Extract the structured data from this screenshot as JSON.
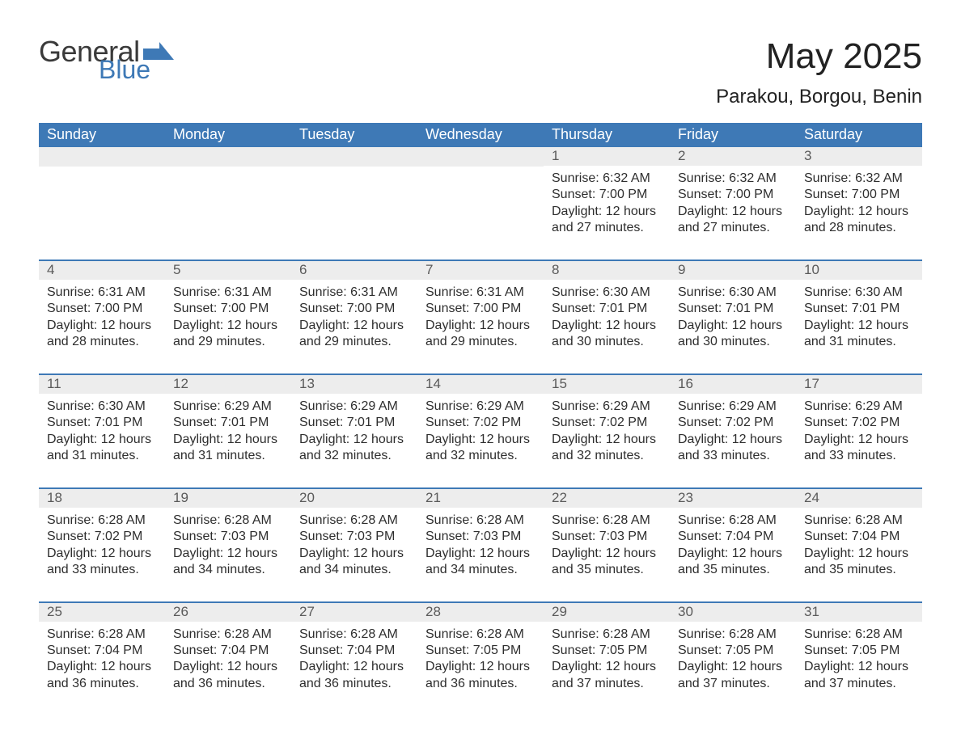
{
  "colors": {
    "accent": "#3e79b6",
    "header_text": "#ffffff",
    "daynum_bg": "#ededed",
    "daynum_text": "#5a5a5a",
    "body_text": "#333333",
    "page_bg": "#ffffff"
  },
  "typography": {
    "title_fontsize_pt": 33,
    "location_fontsize_pt": 18,
    "weekday_fontsize_pt": 13,
    "daynum_fontsize_pt": 13,
    "body_fontsize_pt": 12,
    "font_family": "Segoe UI"
  },
  "logo": {
    "line1": "General",
    "line2": "Blue",
    "line1_color": "#3a3a3a",
    "line2_color": "#3e79b6",
    "flag_color": "#3e79b6"
  },
  "title": {
    "month": "May 2025",
    "location": "Parakou, Borgou, Benin"
  },
  "calendar": {
    "type": "table",
    "columns": [
      "Sunday",
      "Monday",
      "Tuesday",
      "Wednesday",
      "Thursday",
      "Friday",
      "Saturday"
    ],
    "start_weekday_index": 4,
    "labels": {
      "sunrise": "Sunrise",
      "sunset": "Sunset",
      "daylight": "Daylight"
    },
    "days": [
      {
        "n": 1,
        "sunrise": "6:32 AM",
        "sunset": "7:00 PM",
        "daylight": "12 hours and 27 minutes."
      },
      {
        "n": 2,
        "sunrise": "6:32 AM",
        "sunset": "7:00 PM",
        "daylight": "12 hours and 27 minutes."
      },
      {
        "n": 3,
        "sunrise": "6:32 AM",
        "sunset": "7:00 PM",
        "daylight": "12 hours and 28 minutes."
      },
      {
        "n": 4,
        "sunrise": "6:31 AM",
        "sunset": "7:00 PM",
        "daylight": "12 hours and 28 minutes."
      },
      {
        "n": 5,
        "sunrise": "6:31 AM",
        "sunset": "7:00 PM",
        "daylight": "12 hours and 29 minutes."
      },
      {
        "n": 6,
        "sunrise": "6:31 AM",
        "sunset": "7:00 PM",
        "daylight": "12 hours and 29 minutes."
      },
      {
        "n": 7,
        "sunrise": "6:31 AM",
        "sunset": "7:00 PM",
        "daylight": "12 hours and 29 minutes."
      },
      {
        "n": 8,
        "sunrise": "6:30 AM",
        "sunset": "7:01 PM",
        "daylight": "12 hours and 30 minutes."
      },
      {
        "n": 9,
        "sunrise": "6:30 AM",
        "sunset": "7:01 PM",
        "daylight": "12 hours and 30 minutes."
      },
      {
        "n": 10,
        "sunrise": "6:30 AM",
        "sunset": "7:01 PM",
        "daylight": "12 hours and 31 minutes."
      },
      {
        "n": 11,
        "sunrise": "6:30 AM",
        "sunset": "7:01 PM",
        "daylight": "12 hours and 31 minutes."
      },
      {
        "n": 12,
        "sunrise": "6:29 AM",
        "sunset": "7:01 PM",
        "daylight": "12 hours and 31 minutes."
      },
      {
        "n": 13,
        "sunrise": "6:29 AM",
        "sunset": "7:01 PM",
        "daylight": "12 hours and 32 minutes."
      },
      {
        "n": 14,
        "sunrise": "6:29 AM",
        "sunset": "7:02 PM",
        "daylight": "12 hours and 32 minutes."
      },
      {
        "n": 15,
        "sunrise": "6:29 AM",
        "sunset": "7:02 PM",
        "daylight": "12 hours and 32 minutes."
      },
      {
        "n": 16,
        "sunrise": "6:29 AM",
        "sunset": "7:02 PM",
        "daylight": "12 hours and 33 minutes."
      },
      {
        "n": 17,
        "sunrise": "6:29 AM",
        "sunset": "7:02 PM",
        "daylight": "12 hours and 33 minutes."
      },
      {
        "n": 18,
        "sunrise": "6:28 AM",
        "sunset": "7:02 PM",
        "daylight": "12 hours and 33 minutes."
      },
      {
        "n": 19,
        "sunrise": "6:28 AM",
        "sunset": "7:03 PM",
        "daylight": "12 hours and 34 minutes."
      },
      {
        "n": 20,
        "sunrise": "6:28 AM",
        "sunset": "7:03 PM",
        "daylight": "12 hours and 34 minutes."
      },
      {
        "n": 21,
        "sunrise": "6:28 AM",
        "sunset": "7:03 PM",
        "daylight": "12 hours and 34 minutes."
      },
      {
        "n": 22,
        "sunrise": "6:28 AM",
        "sunset": "7:03 PM",
        "daylight": "12 hours and 35 minutes."
      },
      {
        "n": 23,
        "sunrise": "6:28 AM",
        "sunset": "7:04 PM",
        "daylight": "12 hours and 35 minutes."
      },
      {
        "n": 24,
        "sunrise": "6:28 AM",
        "sunset": "7:04 PM",
        "daylight": "12 hours and 35 minutes."
      },
      {
        "n": 25,
        "sunrise": "6:28 AM",
        "sunset": "7:04 PM",
        "daylight": "12 hours and 36 minutes."
      },
      {
        "n": 26,
        "sunrise": "6:28 AM",
        "sunset": "7:04 PM",
        "daylight": "12 hours and 36 minutes."
      },
      {
        "n": 27,
        "sunrise": "6:28 AM",
        "sunset": "7:04 PM",
        "daylight": "12 hours and 36 minutes."
      },
      {
        "n": 28,
        "sunrise": "6:28 AM",
        "sunset": "7:05 PM",
        "daylight": "12 hours and 36 minutes."
      },
      {
        "n": 29,
        "sunrise": "6:28 AM",
        "sunset": "7:05 PM",
        "daylight": "12 hours and 37 minutes."
      },
      {
        "n": 30,
        "sunrise": "6:28 AM",
        "sunset": "7:05 PM",
        "daylight": "12 hours and 37 minutes."
      },
      {
        "n": 31,
        "sunrise": "6:28 AM",
        "sunset": "7:05 PM",
        "daylight": "12 hours and 37 minutes."
      }
    ]
  }
}
